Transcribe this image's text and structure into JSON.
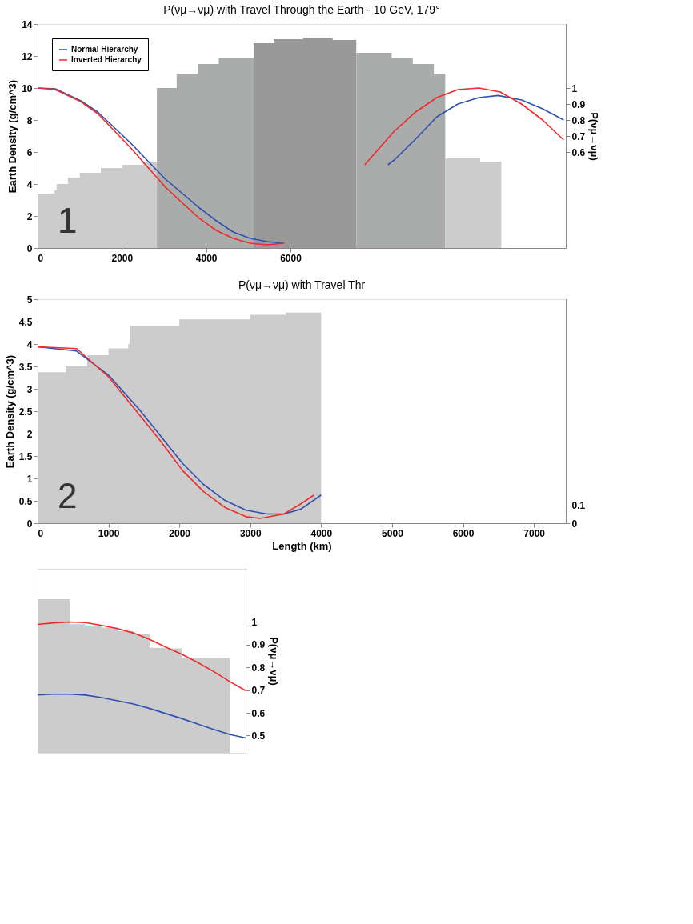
{
  "chart_data": [
    {
      "type": "line",
      "title": "P(νμ→νμ) with Travel Through the Earth - 10 GeV, 179°",
      "ylabel": "Earth Density (g/cm^3)",
      "y2label": "P(νμ→νμ)",
      "annotations": [
        "1"
      ],
      "xlim": [
        0,
        12530
      ],
      "xticks": [
        0,
        2000,
        4000,
        6000
      ],
      "ylim": [
        0,
        14
      ],
      "yticks": [
        0,
        2,
        4,
        6,
        8,
        10,
        12,
        14
      ],
      "y2lim": [
        0,
        1.4
      ],
      "y2ticks": [
        0.6,
        0.7,
        0.8,
        0.9,
        1
      ],
      "legend": "top left",
      "grid": false,
      "series": [
        {
          "type": "area",
          "color": "#cccccc",
          "x": [
            0,
            400,
            450,
            720,
            1000,
            1500,
            2000,
            2500,
            2830
          ],
          "values": [
            3.4,
            3.6,
            4.0,
            4.4,
            4.7,
            5.0,
            5.2,
            5.4,
            5.6
          ]
        },
        {
          "type": "area",
          "color": "#aaacac",
          "x": [
            2830,
            3300,
            3800,
            4300,
            5125
          ],
          "values": [
            10.0,
            10.9,
            11.5,
            11.9,
            12.25
          ]
        },
        {
          "type": "area",
          "color": "#999999",
          "x": [
            5125,
            5600,
            6300,
            7000,
            7560
          ],
          "values": [
            12.8,
            13.05,
            13.15,
            13.0,
            12.8
          ]
        },
        {
          "type": "area",
          "color": "#aaacac",
          "x": [
            7560,
            8400,
            8900,
            9400,
            9670
          ],
          "values": [
            12.2,
            11.9,
            11.5,
            10.9,
            10.0
          ]
        },
        {
          "type": "area",
          "color": "#cccccc",
          "x": [
            9670,
            10500,
            11000
          ],
          "values": [
            5.6,
            5.4,
            5.2
          ]
        },
        {
          "name": "Normal Hierarchy",
          "color": "#3050b0",
          "axis": "y2",
          "x": [
            0,
            420,
            1025,
            1427,
            1830,
            2230,
            2630,
            3035,
            3440,
            3840,
            4240,
            4640,
            5045,
            5450,
            5850,
            6500,
            7000,
            7500,
            8000,
            8310,
            8460,
            8965,
            9470,
            9970,
            10470,
            10925,
            11480,
            11980,
            12480
          ],
          "values": [
            1.0,
            0.995,
            0.92,
            0.85,
            0.75,
            0.65,
            0.54,
            0.43,
            0.34,
            0.25,
            0.17,
            0.1,
            0.06,
            0.04,
            0.03,
            null,
            null,
            null,
            null,
            0.52,
            0.55,
            0.68,
            0.82,
            0.9,
            0.94,
            0.953,
            0.925,
            0.87,
            0.8
          ]
        },
        {
          "name": "Inverted Hierarchy",
          "color": "#ee2a2a",
          "axis": "y2",
          "x": [
            0,
            420,
            1025,
            1427,
            1830,
            2230,
            2630,
            3035,
            3440,
            3840,
            4240,
            4640,
            5045,
            5450,
            5850,
            6500,
            7000,
            7500,
            7760,
            8060,
            8460,
            8965,
            9470,
            9970,
            10470,
            10975,
            11480,
            11980,
            12480
          ],
          "values": [
            1.0,
            0.99,
            0.915,
            0.84,
            0.73,
            0.62,
            0.5,
            0.38,
            0.28,
            0.185,
            0.11,
            0.06,
            0.03,
            0.02,
            0.03,
            null,
            null,
            null,
            0.52,
            0.61,
            0.73,
            0.85,
            0.94,
            0.99,
            1.0,
            0.975,
            0.9,
            0.8,
            0.675
          ]
        }
      ]
    },
    {
      "type": "line",
      "title": "P(νμ→νμ) with Travel Thr",
      "xlabel": "Length (km)",
      "ylabel": "Earth Density (g/cm^3)",
      "annotations": [
        "2"
      ],
      "xlim": [
        0,
        7450
      ],
      "xticks": [
        0,
        1000,
        2000,
        3000,
        4000,
        5000,
        6000,
        7000
      ],
      "ylim": [
        0,
        5
      ],
      "yticks": [
        0,
        0.5,
        1,
        1.5,
        2,
        2.5,
        3,
        3.5,
        4,
        4.5,
        5
      ],
      "y2lim": [
        0,
        1.27
      ],
      "y2ticks": [
        0,
        0.1
      ],
      "grid": false,
      "series": [
        {
          "type": "area",
          "color": "#cccccc",
          "x": [
            0,
            400,
            700,
            1000,
            1280,
            1300,
            2000,
            3000,
            3500,
            4000
          ],
          "values": [
            3.37,
            3.5,
            3.75,
            3.9,
            4.0,
            4.4,
            4.55,
            4.65,
            4.7,
            4.7
          ]
        },
        {
          "color": "#3050b0",
          "axis": "y2",
          "x": [
            0,
            550,
            1000,
            1445,
            1745,
            2043,
            2340,
            2640,
            2940,
            3240,
            3475,
            3715,
            4000
          ],
          "values": [
            1.0,
            0.976,
            0.84,
            0.64,
            0.49,
            0.34,
            0.22,
            0.13,
            0.074,
            0.052,
            0.052,
            0.08,
            0.16
          ]
        },
        {
          "color": "#ee2a2a",
          "axis": "y2",
          "x": [
            0,
            550,
            1000,
            1445,
            1745,
            2043,
            2340,
            2640,
            2940,
            3140,
            3475,
            3715,
            3900
          ],
          "values": [
            1.0,
            0.99,
            0.83,
            0.61,
            0.46,
            0.3,
            0.18,
            0.09,
            0.037,
            0.027,
            0.052,
            0.11,
            0.16
          ]
        }
      ]
    },
    {
      "type": "line",
      "ylabel": "P(νμ→νμ)",
      "categories": [
        null,
        null,
        null,
        null,
        null,
        null,
        null,
        null,
        null,
        null,
        null,
        null,
        null,
        null
      ],
      "ylim": [
        0.424,
        1.234
      ],
      "yticks": [
        0.5,
        0.6,
        0.7,
        0.8,
        0.9,
        1
      ],
      "grid": false,
      "series": [
        {
          "type": "area",
          "color": "#cccccc",
          "values": [
            1.1,
            1.1,
            0.99,
            0.985,
            0.975,
            0.96,
            0.945,
            0.886,
            0.884,
            0.842,
            0.842,
            0.842,
            0.846,
            null
          ]
        },
        {
          "color": "#ee2a2a",
          "values": [
            0.989,
            0.996,
            1.0,
            0.997,
            0.985,
            0.971,
            0.951,
            0.923,
            0.89,
            0.858,
            0.822,
            0.782,
            0.738,
            0.698
          ]
        },
        {
          "color": "#3050b0",
          "values": [
            0.679,
            0.682,
            0.682,
            0.678,
            0.667,
            0.653,
            0.639,
            0.619,
            0.597,
            0.575,
            0.551,
            0.527,
            0.505,
            0.489
          ]
        }
      ]
    }
  ]
}
